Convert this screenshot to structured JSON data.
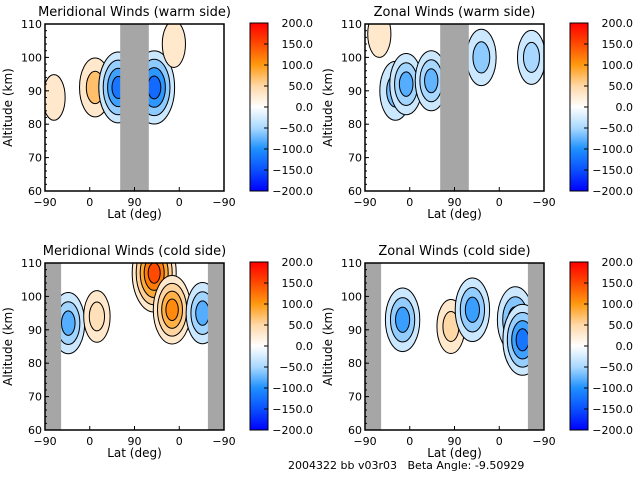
{
  "footer": {
    "date_code": "2004322",
    "label": "bb v03r03",
    "beta_angle_label": "Beta Angle:",
    "beta_angle_value": "-9.50929"
  },
  "colorbar": {
    "range": [
      -200,
      200
    ],
    "tick_labels": [
      "200.0",
      "150.0",
      "100.0",
      "50.0",
      "0.0",
      "−50.0",
      "−100.0",
      "−150.0",
      "−200.0"
    ],
    "tick_values": [
      200,
      150,
      100,
      50,
      0,
      -50,
      -100,
      -150,
      -200
    ],
    "color_stops": [
      {
        "value": 200,
        "color": "#ff0000"
      },
      {
        "value": 150,
        "color": "#ff4a00"
      },
      {
        "value": 100,
        "color": "#ff9a10"
      },
      {
        "value": 50,
        "color": "#ffd8a8"
      },
      {
        "value": 0,
        "color": "#ffffff"
      },
      {
        "value": -50,
        "color": "#a8d8ff"
      },
      {
        "value": -100,
        "color": "#1e90ff"
      },
      {
        "value": -150,
        "color": "#0a50ff"
      },
      {
        "value": -200,
        "color": "#0000ff"
      }
    ]
  },
  "chart_data": [
    {
      "type": "heatmap",
      "title": "Meridional Winds (warm side)",
      "xlabel": "Lat (deg)",
      "ylabel": "Altitude (km)",
      "x_tick_labels": [
        "−90",
        "0",
        "90",
        "0",
        "−90"
      ],
      "y_tick_labels": [
        "60",
        "70",
        "80",
        "90",
        "100",
        "110"
      ],
      "ylim": [
        60,
        110
      ],
      "xlim": [
        -90,
        90,
        -90
      ],
      "no_data_bands": [
        {
          "from_frac": 0.42,
          "to_frac": 0.58
        }
      ],
      "features": [
        {
          "lat_frac": 0.28,
          "alt": 91,
          "value": 70,
          "note": "positive max"
        },
        {
          "lat_frac": 0.41,
          "alt": 91,
          "value": -120,
          "note": "negative min"
        },
        {
          "lat_frac": 0.61,
          "alt": 91,
          "value": -130,
          "note": "negative min"
        },
        {
          "lat_frac": 0.72,
          "alt": 104,
          "value": 20
        },
        {
          "lat_frac": 0.05,
          "alt": 88,
          "value": 15
        }
      ]
    },
    {
      "type": "heatmap",
      "title": "Zonal Winds (warm side)",
      "xlabel": "Lat (deg)",
      "ylabel": "Altitude (km)",
      "x_tick_labels": [
        "−90",
        "0",
        "90",
        "0",
        "−90"
      ],
      "y_tick_labels": [
        "60",
        "70",
        "80",
        "90",
        "100",
        "110"
      ],
      "ylim": [
        60,
        110
      ],
      "xlim": [
        -90,
        90,
        -90
      ],
      "no_data_bands": [
        {
          "from_frac": 0.42,
          "to_frac": 0.58
        }
      ],
      "features": [
        {
          "lat_frac": 0.08,
          "alt": 107,
          "value": 20
        },
        {
          "lat_frac": 0.17,
          "alt": 90,
          "value": -70
        },
        {
          "lat_frac": 0.23,
          "alt": 92,
          "value": -80
        },
        {
          "lat_frac": 0.37,
          "alt": 93,
          "value": -75
        },
        {
          "lat_frac": 0.65,
          "alt": 100,
          "value": -60
        },
        {
          "lat_frac": 0.93,
          "alt": 100,
          "value": -50
        }
      ]
    },
    {
      "type": "heatmap",
      "title": "Meridional Winds (cold side)",
      "xlabel": "Lat (deg)",
      "ylabel": "Altitude (km)",
      "x_tick_labels": [
        "−90",
        "0",
        "90",
        "0",
        "−90"
      ],
      "y_tick_labels": [
        "60",
        "70",
        "80",
        "90",
        "100",
        "110"
      ],
      "ylim": [
        60,
        110
      ],
      "xlim": [
        -90,
        90,
        -90
      ],
      "no_data_bands": [
        {
          "from_frac": 0.0,
          "to_frac": 0.09
        },
        {
          "from_frac": 0.91,
          "to_frac": 1.0
        }
      ],
      "features": [
        {
          "lat_frac": 0.13,
          "alt": 92,
          "value": -80
        },
        {
          "lat_frac": 0.29,
          "alt": 94,
          "value": 40
        },
        {
          "lat_frac": 0.61,
          "alt": 107,
          "value": 150,
          "note": "positive max"
        },
        {
          "lat_frac": 0.71,
          "alt": 96,
          "value": 110
        },
        {
          "lat_frac": 0.88,
          "alt": 95,
          "value": -80
        }
      ]
    },
    {
      "type": "heatmap",
      "title": "Zonal Winds (cold side)",
      "xlabel": "Lat (deg)",
      "ylabel": "Altitude (km)",
      "x_tick_labels": [
        "−90",
        "0",
        "90",
        "0",
        "−90"
      ],
      "y_tick_labels": [
        "60",
        "70",
        "80",
        "90",
        "100",
        "110"
      ],
      "ylim": [
        60,
        110
      ],
      "xlim": [
        -90,
        90,
        -90
      ],
      "no_data_bands": [
        {
          "from_frac": 0.0,
          "to_frac": 0.09
        },
        {
          "from_frac": 0.91,
          "to_frac": 1.0
        }
      ],
      "features": [
        {
          "lat_frac": 0.21,
          "alt": 93,
          "value": -90
        },
        {
          "lat_frac": 0.48,
          "alt": 91,
          "value": 50
        },
        {
          "lat_frac": 0.6,
          "alt": 96,
          "value": -90
        },
        {
          "lat_frac": 0.84,
          "alt": 93,
          "value": -100
        },
        {
          "lat_frac": 0.88,
          "alt": 87,
          "value": -120
        }
      ]
    }
  ]
}
